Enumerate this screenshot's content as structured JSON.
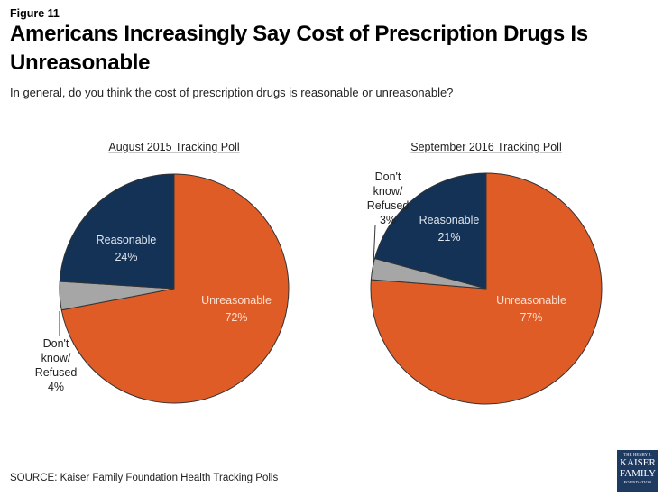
{
  "figure_label": "Figure 11",
  "title": "Americans Increasingly Say Cost of Prescription Drugs Is Unreasonable",
  "subtitle": "In general, do you think the cost of prescription drugs is reasonable or unreasonable?",
  "source": "SOURCE: Kaiser Family Foundation  Health Tracking Polls",
  "logo": {
    "line1": "THE HENRY J.",
    "line2": "KAISER",
    "line3": "FAMILY",
    "line4": "FOUNDATION"
  },
  "colors": {
    "unreasonable": "#e05c27",
    "dont_know": "#a6a6a6",
    "reasonable": "#143256",
    "outline": "#333333"
  },
  "chart_data": [
    {
      "type": "pie",
      "title": "August 2015 Tracking Poll",
      "slices": [
        {
          "key": "unreasonable",
          "label": "Unreasonable",
          "value": 72,
          "value_label": "72%"
        },
        {
          "key": "dont_know",
          "label": "Don't know/ Refused",
          "label_lines": [
            "Don't",
            "know/",
            "Refused",
            "4%"
          ],
          "value": 4,
          "value_label": "4%"
        },
        {
          "key": "reasonable",
          "label": "Reasonable",
          "value": 24,
          "value_label": "24%"
        }
      ],
      "start": "12 o'clock",
      "direction": "clockwise"
    },
    {
      "type": "pie",
      "title": "September 2016 Tracking Poll",
      "slices": [
        {
          "key": "unreasonable",
          "label": "Unreasonable",
          "value": 77,
          "value_label": "77%"
        },
        {
          "key": "dont_know",
          "label": "Don't know/ Refused",
          "label_lines": [
            "Don't",
            "know/",
            "Refused",
            "3%"
          ],
          "value": 3,
          "value_label": "3%"
        },
        {
          "key": "reasonable",
          "label": "Reasonable",
          "value": 21,
          "value_label": "21%"
        }
      ],
      "start": "12 o'clock",
      "direction": "clockwise"
    }
  ]
}
